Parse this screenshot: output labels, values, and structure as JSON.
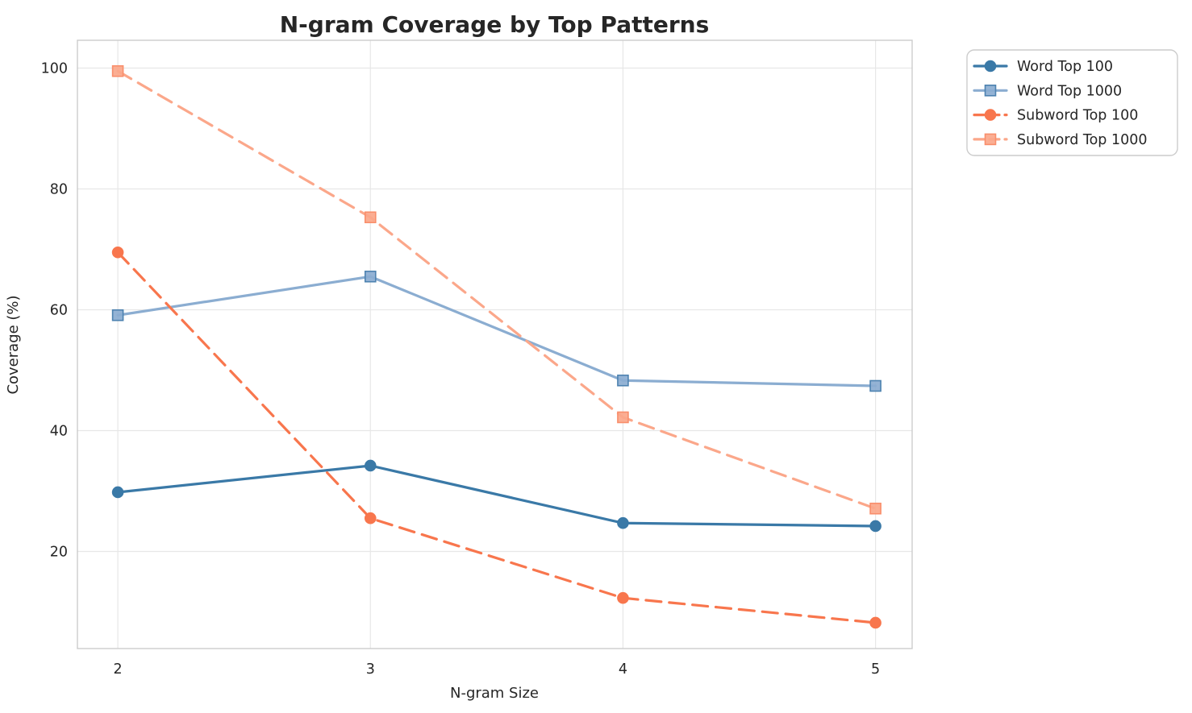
{
  "chart_data": {
    "type": "line",
    "title": "N-gram Coverage by Top Patterns",
    "xlabel": "N-gram Size",
    "ylabel": "Coverage (%)",
    "x": [
      2,
      3,
      4,
      5
    ],
    "x_tick_labels": [
      "2",
      "3",
      "4",
      "5"
    ],
    "y_ticks": [
      20,
      40,
      60,
      80,
      100
    ],
    "series": [
      {
        "name": "Word Top 100",
        "values": [
          29.8,
          34.2,
          24.7,
          24.2
        ],
        "color": "#3a79a7",
        "marker_edge": "#3a79a7",
        "style": "solid",
        "marker": "circle"
      },
      {
        "name": "Word Top 1000",
        "values": [
          59.1,
          65.5,
          48.3,
          47.4
        ],
        "color": "#8badd1",
        "marker_edge": "#4d82b0",
        "style": "solid",
        "marker": "square"
      },
      {
        "name": "Subword Top 100",
        "values": [
          69.5,
          25.5,
          12.3,
          8.2
        ],
        "color": "#f8764d",
        "marker_edge": "#f8764d",
        "style": "dashed",
        "marker": "circle"
      },
      {
        "name": "Subword Top 1000",
        "values": [
          99.5,
          75.3,
          42.2,
          27.1
        ],
        "color": "#fba78a",
        "marker_edge": "#f98e6b",
        "style": "dashed",
        "marker": "square"
      }
    ],
    "xlim": [
      1.84,
      5.145
    ],
    "ylim": [
      3.93,
      104.6
    ],
    "grid": true,
    "legend_position": "outside-right"
  },
  "colors": {
    "grid": "#e7e7e7",
    "spine": "#cccccc",
    "text": "#262626",
    "background": "#ffffff",
    "legend_border": "#cccccc"
  }
}
